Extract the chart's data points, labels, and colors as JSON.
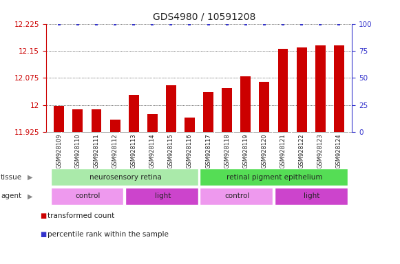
{
  "title": "GDS4980 / 10591208",
  "samples": [
    "GSM928109",
    "GSM928110",
    "GSM928111",
    "GSM928112",
    "GSM928113",
    "GSM928114",
    "GSM928115",
    "GSM928116",
    "GSM928117",
    "GSM928118",
    "GSM928119",
    "GSM928120",
    "GSM928121",
    "GSM928122",
    "GSM928123",
    "GSM928124"
  ],
  "bar_values": [
    11.997,
    11.987,
    11.987,
    11.96,
    12.028,
    11.974,
    12.055,
    11.965,
    12.035,
    12.047,
    12.08,
    12.065,
    12.155,
    12.16,
    12.165,
    12.165
  ],
  "percentile_values": [
    100,
    100,
    100,
    100,
    100,
    100,
    100,
    100,
    100,
    100,
    100,
    100,
    100,
    100,
    100,
    100
  ],
  "bar_color": "#cc0000",
  "dot_color": "#3333cc",
  "ylim_left": [
    11.925,
    12.225
  ],
  "ylim_right": [
    0,
    100
  ],
  "yticks_left": [
    11.925,
    12.0,
    12.075,
    12.15,
    12.225
  ],
  "yticks_right": [
    0,
    25,
    50,
    75,
    100
  ],
  "tissue_labels": [
    {
      "text": "neurosensory retina",
      "start": 0,
      "end": 7,
      "color": "#aaeaaa"
    },
    {
      "text": "retinal pigment epithelium",
      "start": 8,
      "end": 15,
      "color": "#55dd55"
    }
  ],
  "agent_labels": [
    {
      "text": "control",
      "start": 0,
      "end": 3,
      "color": "#ee99ee"
    },
    {
      "text": "light",
      "start": 4,
      "end": 7,
      "color": "#cc44cc"
    },
    {
      "text": "control",
      "start": 8,
      "end": 11,
      "color": "#ee99ee"
    },
    {
      "text": "light",
      "start": 12,
      "end": 15,
      "color": "#cc44cc"
    }
  ],
  "legend_items": [
    {
      "label": "transformed count",
      "color": "#cc0000"
    },
    {
      "label": "percentile rank within the sample",
      "color": "#3333cc"
    }
  ],
  "xticklabel_bg": "#cccccc",
  "background_color": "#ffffff",
  "grid_color": "#000000",
  "title_fontsize": 10,
  "tick_fontsize": 7.5,
  "label_fontsize": 8
}
